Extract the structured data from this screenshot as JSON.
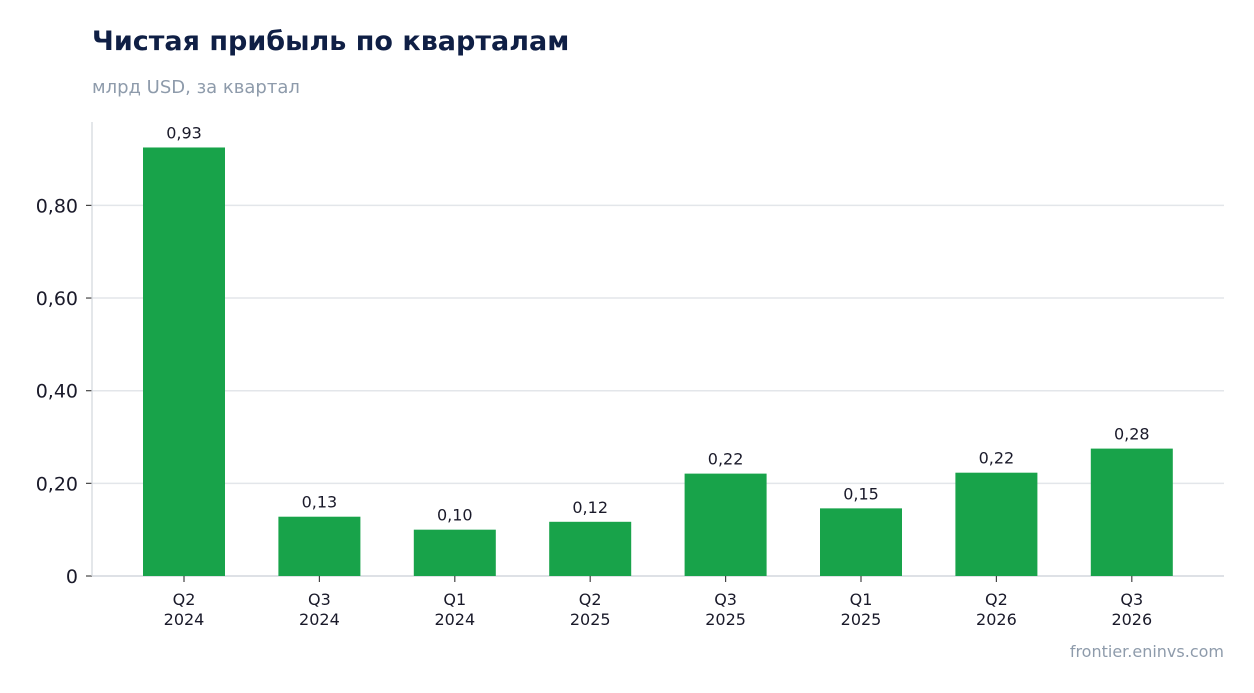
{
  "header": {
    "title": "Чистая прибыль по кварталам",
    "subtitle": "млрд USD, за квартал"
  },
  "footer": {
    "source": "frontier.eninvs.com"
  },
  "colors": {
    "bar": "#18a34a",
    "grid": "#e3e6ea",
    "axis": "#d3d7dd",
    "text": "#1a1a2a"
  },
  "chart_data": {
    "type": "bar",
    "title": "Чистая прибыль по кварталам",
    "subtitle": "млрд USD, за квартал",
    "categories": [
      [
        "Q2",
        "2024"
      ],
      [
        "Q3",
        "2024"
      ],
      [
        "Q1",
        "2024"
      ],
      [
        "Q2",
        "2025"
      ],
      [
        "Q3",
        "2025"
      ],
      [
        "Q1",
        "2025"
      ],
      [
        "Q2",
        "2026"
      ],
      [
        "Q3",
        "2026"
      ]
    ],
    "values": [
      0.925,
      0.128,
      0.1,
      0.117,
      0.221,
      0.146,
      0.223,
      0.275
    ],
    "data_labels": [
      "0,93",
      "0,13",
      "0,10",
      "0,12",
      "0,22",
      "0,15",
      "0,22",
      "0,28"
    ],
    "y_ticks": [
      0,
      0.2,
      0.4,
      0.6,
      0.8
    ],
    "y_tick_labels": [
      "0",
      "0,20",
      "0,40",
      "0,60",
      "0,80"
    ],
    "ylim": [
      0,
      0.98
    ],
    "grid": true,
    "legend": "none"
  }
}
